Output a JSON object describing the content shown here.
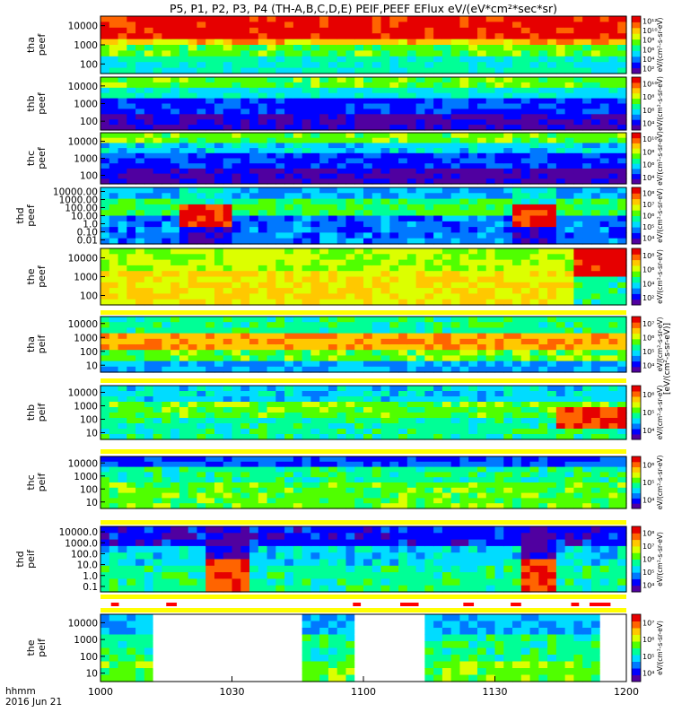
{
  "chart_data": {
    "type": "heatmap",
    "title": "P5, P1, P2, P3, P4 (TH-A,B,C,D,E) PEIF,PEEF EFlux eV/(eV*cm²*sec*sr)",
    "x_axis": {
      "ticks": [
        "1000",
        "1030",
        "1100",
        "1130",
        "1200"
      ],
      "corner_label_1": "hhmm",
      "corner_label_2": "2016 Jun 21"
    },
    "colorbar_side_label": "[eV/(cm²-s-sr-eV)]",
    "panels": [
      {
        "id": "tha-peef",
        "probe": "tha",
        "product": "peef",
        "label_1": "tha",
        "label_2": "peef",
        "yticks": [
          "100",
          "1000",
          "10000"
        ],
        "ylog": true,
        "colorbar_ticks": [
          "10²",
          "10⁴",
          "10⁶",
          "10⁸",
          "10¹⁰",
          "10¹²"
        ],
        "colorbar_label": "eV/(cm²-s-sr-eV)"
      },
      {
        "id": "thb-peef",
        "probe": "thb",
        "product": "peef",
        "label_1": "thb",
        "label_2": "peef",
        "yticks": [
          "100",
          "1000",
          "10000"
        ],
        "ylog": true,
        "colorbar_ticks": [
          "10⁴",
          "10⁶",
          "10⁸",
          "10¹⁰"
        ],
        "colorbar_label": "eV/(cm²-s-sr-eV)"
      },
      {
        "id": "thc-peef",
        "probe": "thc",
        "product": "peef",
        "label_1": "thc",
        "label_2": "peef",
        "yticks": [
          "100",
          "1000",
          "10000"
        ],
        "ylog": true,
        "colorbar_ticks": [
          "10⁴",
          "10⁶",
          "10⁸",
          "10¹⁰"
        ],
        "colorbar_label": "eV/(cm²-s-sr-eV)"
      },
      {
        "id": "thd-peef",
        "probe": "thd",
        "product": "peef",
        "label_1": "thd",
        "label_2": "peef",
        "yticks": [
          "0.01",
          "0.10",
          "1.0",
          "10.00",
          "100.00",
          "1000.00",
          "10000.00"
        ],
        "ylog": true,
        "colorbar_ticks": [
          "10⁴",
          "10⁵",
          "10⁶",
          "10⁷",
          "10⁸"
        ],
        "colorbar_label": "eV/(cm²-s-sr-eV)"
      },
      {
        "id": "the-peef",
        "probe": "the",
        "product": "peef",
        "label_1": "the",
        "label_2": "peef",
        "yticks": [
          "100",
          "1000",
          "10000"
        ],
        "ylog": true,
        "colorbar_ticks": [
          "10²",
          "10⁴",
          "10⁶",
          "10⁸"
        ],
        "colorbar_label": "eV/(cm²-s-sr-eV)"
      },
      {
        "id": "tha-peif",
        "probe": "tha",
        "product": "peif",
        "label_1": "tha",
        "label_2": "peif",
        "yticks": [
          "10",
          "100",
          "1000",
          "10000"
        ],
        "ylog": true,
        "colorbar_ticks": [
          "10⁴",
          "10⁵",
          "10⁶",
          "10⁷"
        ],
        "colorbar_label": "eV/(cm²-s-sr-eV)"
      },
      {
        "id": "thb-peif",
        "probe": "thb",
        "product": "peif",
        "label_1": "thb",
        "label_2": "peif",
        "yticks": [
          "10",
          "100",
          "1000",
          "10000"
        ],
        "ylog": true,
        "colorbar_ticks": [
          "10⁴",
          "10⁵",
          "10⁶"
        ],
        "colorbar_label": "eV/(cm²-s-sr-eV)"
      },
      {
        "id": "thc-peif",
        "probe": "thc",
        "product": "peif",
        "label_1": "thc",
        "label_2": "peif",
        "yticks": [
          "10",
          "100",
          "1000",
          "10000"
        ],
        "ylog": true,
        "colorbar_ticks": [
          "10⁴",
          "10⁵",
          "10⁶"
        ],
        "colorbar_label": "eV/(cm²-s-sr-eV)"
      },
      {
        "id": "thd-peif",
        "probe": "thd",
        "product": "peif",
        "label_1": "thd",
        "label_2": "peif",
        "yticks": [
          "0.1",
          "1.0",
          "10.0",
          "100.0",
          "1000.0",
          "10000.0"
        ],
        "ylog": true,
        "colorbar_ticks": [
          "10⁴",
          "10⁵",
          "10⁶",
          "10⁷",
          "10⁸"
        ],
        "colorbar_label": "eV/(cm²-s-sr-eV)"
      },
      {
        "id": "the-peif",
        "probe": "the",
        "product": "peif",
        "label_1": "the",
        "label_2": "peif",
        "yticks": [
          "10",
          "100",
          "1000",
          "10000"
        ],
        "ylog": true,
        "colorbar_ticks": [
          "10⁴",
          "10⁵",
          "10⁶",
          "10⁷"
        ],
        "colorbar_label": "eV/(cm²-s-sr-eV)"
      }
    ],
    "colors": {
      "flag_bar_yellow": "#ffff00",
      "flag_bar_red": "#ff0000",
      "data_gap": "#ffffff",
      "colormap": [
        "#5000a0",
        "#0000ff",
        "#0078ff",
        "#00dcff",
        "#00ff96",
        "#50ff00",
        "#dcff00",
        "#ffc800",
        "#ff6400",
        "#e60000"
      ]
    }
  }
}
